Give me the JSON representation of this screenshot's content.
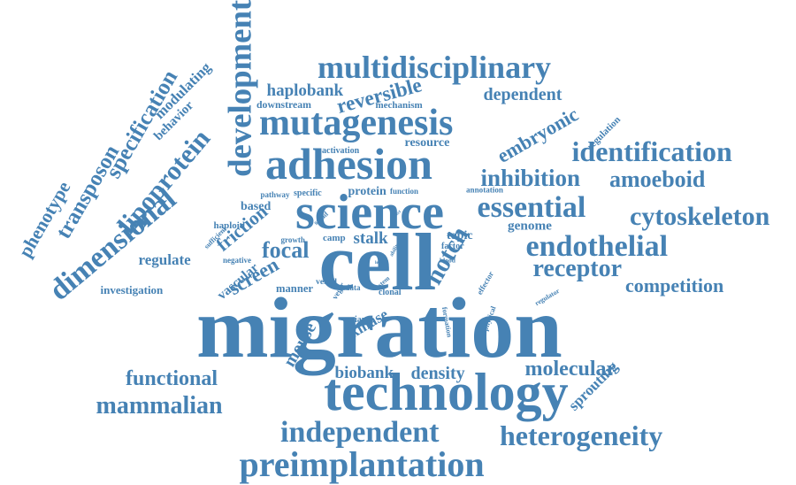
{
  "colors": {
    "text": "#4682b4",
    "background": "#ffffff"
  },
  "words": [
    {
      "text": "migration"
    },
    {
      "text": "cell"
    },
    {
      "text": "technology"
    },
    {
      "text": "adhesion"
    },
    {
      "text": "science"
    },
    {
      "text": "development"
    },
    {
      "text": "mutagenesis"
    },
    {
      "text": "multidisciplinary"
    },
    {
      "text": "preimplantation"
    },
    {
      "text": "independent"
    },
    {
      "text": "heterogeneity"
    },
    {
      "text": "endothelial"
    },
    {
      "text": "dimensional"
    },
    {
      "text": "identification"
    },
    {
      "text": "cytoskeleton"
    },
    {
      "text": "essential"
    },
    {
      "text": "embryonic"
    },
    {
      "text": "notch"
    },
    {
      "text": "mammalian"
    },
    {
      "text": "functional"
    },
    {
      "text": "molecular"
    },
    {
      "text": "transposon"
    },
    {
      "text": "specification"
    },
    {
      "text": "lipoprotein"
    },
    {
      "text": "inhibition"
    },
    {
      "text": "amoeboid"
    },
    {
      "text": "receptor"
    },
    {
      "text": "competition"
    },
    {
      "text": "reversible"
    },
    {
      "text": "dependent"
    },
    {
      "text": "haplobank"
    },
    {
      "text": "focal"
    },
    {
      "text": "screen"
    },
    {
      "text": "friction"
    },
    {
      "text": "phenotype"
    },
    {
      "text": "density"
    },
    {
      "text": "biobank"
    },
    {
      "text": "regulate"
    },
    {
      "text": "mouse"
    },
    {
      "text": "stalk"
    },
    {
      "text": "kinase"
    },
    {
      "text": "vascular"
    },
    {
      "text": "investigation"
    },
    {
      "text": "modulating"
    },
    {
      "text": "behavior"
    },
    {
      "text": "resource"
    },
    {
      "text": "protein"
    },
    {
      "text": "based"
    },
    {
      "text": "genome"
    },
    {
      "text": "topic"
    },
    {
      "text": "sprouting"
    },
    {
      "text": "downstream"
    },
    {
      "text": "mechanism"
    },
    {
      "text": "activation"
    },
    {
      "text": "regulation"
    },
    {
      "text": "annotation"
    },
    {
      "text": "function"
    },
    {
      "text": "pathway"
    },
    {
      "text": "specific"
    },
    {
      "text": "haploid"
    },
    {
      "text": "sufficient"
    },
    {
      "text": "negative"
    },
    {
      "text": "growth"
    },
    {
      "text": "smad"
    },
    {
      "text": "effect"
    },
    {
      "text": "camp"
    },
    {
      "text": "ability"
    },
    {
      "text": "factor"
    },
    {
      "text": "blood"
    },
    {
      "text": "effector"
    },
    {
      "text": "regulator"
    },
    {
      "text": "manner"
    },
    {
      "text": "vessel"
    },
    {
      "text": "vegfr"
    },
    {
      "text": "stem"
    },
    {
      "text": "data"
    },
    {
      "text": "clonal"
    },
    {
      "text": "formation"
    },
    {
      "text": "physical"
    },
    {
      "text": "variance"
    },
    {
      "text": "lead"
    }
  ]
}
